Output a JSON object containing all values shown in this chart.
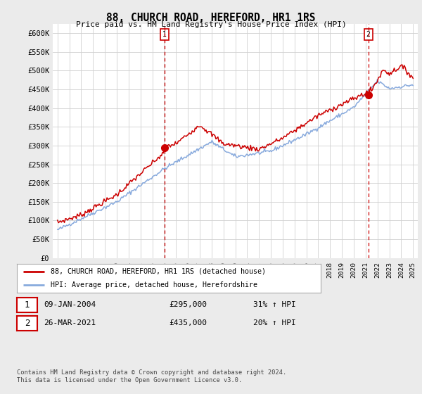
{
  "title": "88, CHURCH ROAD, HEREFORD, HR1 1RS",
  "subtitle": "Price paid vs. HM Land Registry's House Price Index (HPI)",
  "ylabel_ticks": [
    "£0",
    "£50K",
    "£100K",
    "£150K",
    "£200K",
    "£250K",
    "£300K",
    "£350K",
    "£400K",
    "£450K",
    "£500K",
    "£550K",
    "£600K"
  ],
  "ytick_values": [
    0,
    50000,
    100000,
    150000,
    200000,
    250000,
    300000,
    350000,
    400000,
    450000,
    500000,
    550000,
    600000
  ],
  "ylim": [
    0,
    625000
  ],
  "xlim_start": 1994.6,
  "xlim_end": 2025.4,
  "xtick_years": [
    1995,
    1996,
    1997,
    1998,
    1999,
    2000,
    2001,
    2002,
    2003,
    2004,
    2005,
    2006,
    2007,
    2008,
    2009,
    2010,
    2011,
    2012,
    2013,
    2014,
    2015,
    2016,
    2017,
    2018,
    2019,
    2020,
    2021,
    2022,
    2023,
    2024,
    2025
  ],
  "sale1_x": 2004.03,
  "sale1_y": 295000,
  "sale2_x": 2021.23,
  "sale2_y": 435000,
  "red_color": "#cc0000",
  "blue_color": "#88aadd",
  "dashed_color": "#cc0000",
  "background_color": "#ebebeb",
  "plot_bg_color": "#ffffff",
  "annotation1_date": "09-JAN-2004",
  "annotation1_price": "£295,000",
  "annotation1_hpi": "31% ↑ HPI",
  "annotation2_date": "26-MAR-2021",
  "annotation2_price": "£435,000",
  "annotation2_hpi": "20% ↑ HPI",
  "footer": "Contains HM Land Registry data © Crown copyright and database right 2024.\nThis data is licensed under the Open Government Licence v3.0."
}
